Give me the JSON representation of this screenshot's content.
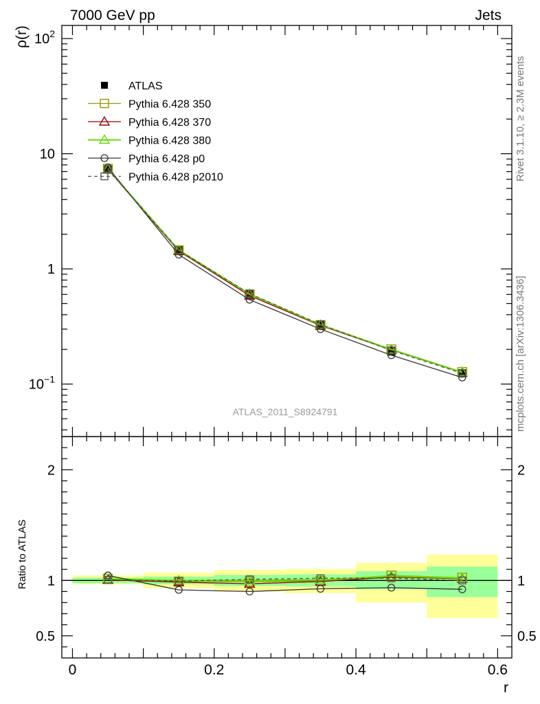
{
  "header": {
    "left": "7000 GeV pp",
    "right": "Jets"
  },
  "side_labels": {
    "rivet": "Rivet 3.1.10, ≥ 2.3M events",
    "mcplots": "mcplots.cern.ch [arXiv:1306.3436]"
  },
  "analysis_id": "ATLAS_2011_S8924791",
  "chart_data": [
    {
      "type": "line",
      "panel": "main",
      "ylabel": "ρ(r)",
      "xlabel": "",
      "y_scale": "log",
      "ylim": [
        0.035,
        130
      ],
      "xlim": [
        -0.015,
        0.62
      ],
      "y_ticks": [
        {
          "value": 0.1,
          "label": "10",
          "exp": "−1"
        },
        {
          "value": 1,
          "label": "1",
          "exp": ""
        },
        {
          "value": 10,
          "label": "10",
          "exp": ""
        },
        {
          "value": 100,
          "label": "10",
          "exp": "2"
        }
      ],
      "x": [
        0.05,
        0.15,
        0.25,
        0.35,
        0.45,
        0.55
      ],
      "legend_position": "top-left",
      "series": [
        {
          "name": "ATLAS",
          "marker": "filled-square",
          "color": "#000000",
          "values": [
            7.3,
            1.45,
            0.6,
            0.325,
            0.192,
            0.124
          ]
        },
        {
          "name": "Pythia 6.428 350",
          "marker": "open-square",
          "color": "#999900",
          "values": [
            7.4,
            1.45,
            0.6,
            0.325,
            0.2,
            0.127
          ]
        },
        {
          "name": "Pythia 6.428 370",
          "marker": "open-triangle",
          "color": "#990000",
          "values": [
            7.3,
            1.43,
            0.585,
            0.322,
            0.198,
            0.126
          ]
        },
        {
          "name": "Pythia 6.428 380",
          "marker": "open-triangle",
          "color": "#66dd00",
          "values": [
            7.4,
            1.46,
            0.605,
            0.327,
            0.2,
            0.127
          ]
        },
        {
          "name": "Pythia 6.428 p0",
          "marker": "open-circle",
          "color": "#333333",
          "values": [
            7.6,
            1.33,
            0.54,
            0.3,
            0.178,
            0.114
          ]
        },
        {
          "name": "Pythia 6.428 p2010",
          "marker": "open-square",
          "color": "#555555",
          "dashed": true,
          "values": [
            7.35,
            1.45,
            0.61,
            0.33,
            0.196,
            0.124
          ]
        }
      ]
    },
    {
      "type": "line",
      "panel": "ratio",
      "ylabel": "Ratio to ATLAS",
      "xlabel": "r",
      "ylim": [
        0.3,
        2.3
      ],
      "xlim": [
        -0.015,
        0.62
      ],
      "x_ticks": [
        {
          "value": 0,
          "label": "0"
        },
        {
          "value": 0.2,
          "label": "0.2"
        },
        {
          "value": 0.4,
          "label": "0.4"
        },
        {
          "value": 0.6,
          "label": "0.6"
        }
      ],
      "y_ticks": [
        {
          "value": 0.5,
          "label": "0.5"
        },
        {
          "value": 1,
          "label": "1"
        },
        {
          "value": 2,
          "label": "2"
        }
      ],
      "x": [
        0.05,
        0.15,
        0.25,
        0.35,
        0.45,
        0.55
      ],
      "bins": [
        [
          0.0,
          0.1
        ],
        [
          0.1,
          0.2
        ],
        [
          0.2,
          0.3
        ],
        [
          0.3,
          0.4
        ],
        [
          0.4,
          0.5
        ],
        [
          0.5,
          0.6
        ]
      ],
      "band_yellow": [
        [
          0.965,
          1.045
        ],
        [
          0.93,
          1.07
        ],
        [
          0.9,
          1.095
        ],
        [
          0.885,
          1.105
        ],
        [
          0.8,
          1.16
        ],
        [
          0.66,
          1.235
        ]
      ],
      "band_green": [
        [
          0.975,
          1.025
        ],
        [
          0.965,
          1.035
        ],
        [
          0.95,
          1.05
        ],
        [
          0.945,
          1.055
        ],
        [
          0.92,
          1.085
        ],
        [
          0.85,
          1.125
        ]
      ],
      "series": [
        {
          "name": "Pythia 6.428 350",
          "marker": "open-square",
          "color": "#999900",
          "values": [
            1.015,
            0.99,
            0.99,
            0.995,
            1.045,
            1.025
          ]
        },
        {
          "name": "Pythia 6.428 370",
          "marker": "open-triangle",
          "color": "#990000",
          "values": [
            1.005,
            0.985,
            0.97,
            0.99,
            1.03,
            1.015
          ]
        },
        {
          "name": "Pythia 6.428 380",
          "marker": "open-triangle",
          "color": "#66dd00",
          "values": [
            1.015,
            1.0,
            1.0,
            1.005,
            1.04,
            1.02
          ]
        },
        {
          "name": "Pythia 6.428 p0",
          "marker": "open-circle",
          "color": "#333333",
          "values": [
            1.045,
            0.915,
            0.9,
            0.925,
            0.935,
            0.92
          ]
        },
        {
          "name": "Pythia 6.428 p2010",
          "marker": "open-square",
          "color": "#555555",
          "dashed": true,
          "values": [
            1.005,
            0.995,
            1.01,
            1.02,
            1.02,
            1.0
          ]
        }
      ]
    }
  ]
}
